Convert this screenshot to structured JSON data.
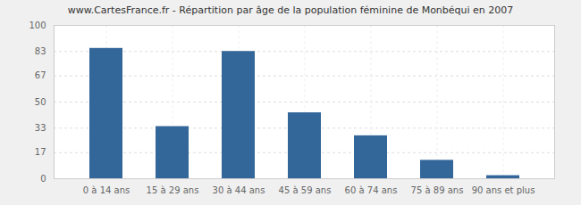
{
  "chart_data": {
    "type": "bar",
    "title": "www.CartesFrance.fr - Répartition par âge de la population féminine de Monbéqui en 2007",
    "categories": [
      "0 à 14 ans",
      "15 à 29 ans",
      "30 à 44 ans",
      "45 à 59 ans",
      "60 à 74 ans",
      "75 à 89 ans",
      "90 ans et plus"
    ],
    "values": [
      85,
      34,
      83,
      43,
      28,
      12,
      2
    ],
    "color": "#336699",
    "ylim": [
      0,
      100
    ],
    "yticks": [
      0,
      17,
      33,
      50,
      67,
      83,
      100
    ],
    "grid": true
  }
}
